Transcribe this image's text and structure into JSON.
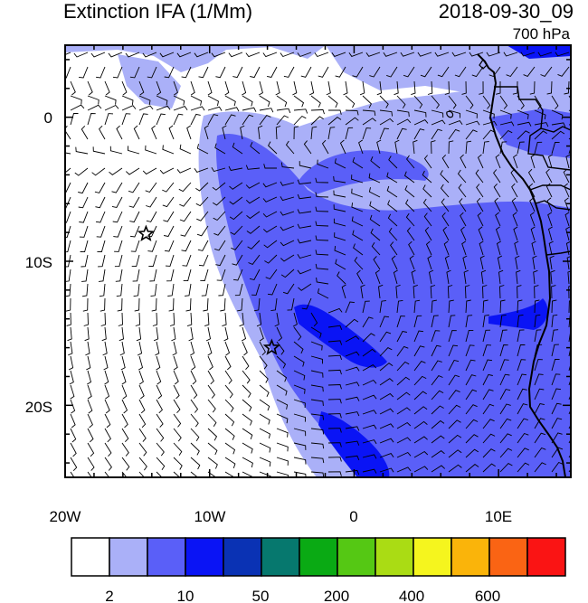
{
  "title": {
    "left": "Extinction IFA (1/Mm)",
    "right": "2018-09-30_09",
    "level": "700 hPa"
  },
  "axes": {
    "x_ticks": [
      "20W",
      "10W",
      "0",
      "10E"
    ],
    "y_ticks": [
      "0",
      "10S",
      "20S"
    ]
  },
  "colorbar": {
    "colors": [
      "#ffffff",
      "#aab0f8",
      "#5a5ff8",
      "#0a14f5",
      "#0a32b4",
      "#06786e",
      "#0aaa14",
      "#55c814",
      "#aadc14",
      "#f5f51e",
      "#fab40a",
      "#fa6414",
      "#fa1414"
    ],
    "labels": [
      "2",
      "10",
      "50",
      "200",
      "400",
      "600"
    ]
  },
  "map": {
    "markers": [
      {
        "name": "star-marker-west",
        "lon": -14.4,
        "lat": -8.1
      },
      {
        "name": "star-marker-central",
        "lon": -5.7,
        "lat": -16.0
      }
    ],
    "extinction_colors": {
      "low": "#ffffff",
      "light": "#aab0f8",
      "medium": "#5a5ff8",
      "strong": "#0a14f5"
    },
    "coastline_color": "#000000",
    "wind_barb_color": "#000000"
  }
}
